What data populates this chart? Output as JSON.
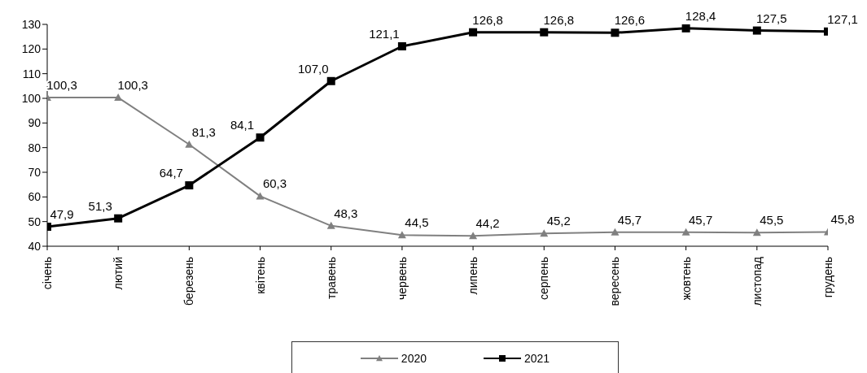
{
  "chart_data": {
    "type": "line",
    "categories": [
      "січень",
      "лютий",
      "березень",
      "квітень",
      "травень",
      "червень",
      "липень",
      "серпень",
      "вересень",
      "жовтень",
      "листопад",
      "грудень"
    ],
    "series": [
      {
        "name": "2020",
        "color": "#808080",
        "marker": "triangle",
        "values": [
          100.3,
          100.3,
          81.3,
          60.3,
          48.3,
          44.5,
          44.2,
          45.2,
          45.7,
          45.7,
          45.5,
          45.8
        ],
        "value_labels": [
          "100,3",
          "100,3",
          "81,3",
          "60,3",
          "48,3",
          "44,5",
          "44,2",
          "45,2",
          "45,7",
          "45,7",
          "45,5",
          "45,8"
        ]
      },
      {
        "name": "2021",
        "color": "#000000",
        "marker": "square",
        "values": [
          47.9,
          51.3,
          64.7,
          84.1,
          107.0,
          121.1,
          126.8,
          126.8,
          126.6,
          128.4,
          127.5,
          127.1
        ],
        "value_labels": [
          "47,9",
          "51,3",
          "64,7",
          "84,1",
          "107,0",
          "121,1",
          "126,8",
          "126,8",
          "126,6",
          "128,4",
          "127,5",
          "127,1"
        ]
      }
    ],
    "ylim": [
      40,
      130
    ],
    "yticks": [
      40,
      50,
      60,
      70,
      80,
      90,
      100,
      110,
      120,
      130
    ],
    "grid": false,
    "legend": "bottom",
    "line_style": "solid"
  }
}
